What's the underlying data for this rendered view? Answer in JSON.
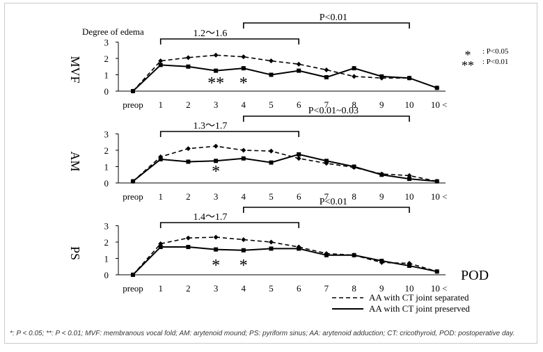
{
  "chart_data": {
    "type": "line",
    "x_categories": [
      "preop",
      "1",
      "2",
      "3",
      "4",
      "5",
      "6",
      "7",
      "8",
      "9",
      "10",
      "10 <"
    ],
    "x_axis_label": "POD",
    "y_axis_title": "Degree of edema",
    "ylim": [
      0,
      3
    ],
    "yticks": [
      "0",
      "1",
      "2",
      "3"
    ],
    "legend": {
      "placement": "bottom-right",
      "entries": [
        {
          "label": "AA with CT joint separated",
          "style": "dashed",
          "marker": "diamond"
        },
        {
          "label": "AA with CT joint preserved",
          "style": "solid",
          "marker": "square"
        }
      ]
    },
    "significance_key": [
      {
        "symbol": "*",
        "text": ": P<0.05"
      },
      {
        "symbol": "**",
        "text": ": P<0.01"
      }
    ],
    "panels": [
      {
        "name": "MVF",
        "series": [
          {
            "name": "AA with CT joint separated",
            "values": [
              0,
              1.85,
              2.05,
              2.2,
              2.1,
              1.85,
              1.65,
              1.3,
              0.9,
              0.8,
              0.8,
              0.2
            ]
          },
          {
            "name": "AA with CT joint preserved",
            "values": [
              0,
              1.6,
              1.5,
              1.25,
              1.4,
              1.0,
              1.25,
              0.85,
              1.4,
              0.9,
              0.8,
              0.2
            ]
          }
        ],
        "significance_marks": [
          {
            "x": "3",
            "symbol": "**"
          },
          {
            "x": "4",
            "symbol": "*"
          }
        ],
        "brackets": [
          {
            "from": "1",
            "to": "6",
            "label": "1.2～1.6"
          },
          {
            "from": "4",
            "to": "10",
            "label": "P<0.01"
          }
        ]
      },
      {
        "name": "AM",
        "series": [
          {
            "name": "AA with CT joint separated",
            "values": [
              0.1,
              1.6,
              2.1,
              2.25,
              2.0,
              1.95,
              1.5,
              1.2,
              0.95,
              0.55,
              0.45,
              0.1
            ]
          },
          {
            "name": "AA with CT joint preserved",
            "values": [
              0.1,
              1.45,
              1.3,
              1.35,
              1.5,
              1.25,
              1.75,
              1.35,
              1.0,
              0.5,
              0.25,
              0.1
            ]
          }
        ],
        "significance_marks": [
          {
            "x": "3",
            "symbol": "*"
          }
        ],
        "brackets": [
          {
            "from": "1",
            "to": "6",
            "label": "1.3～1.7"
          },
          {
            "from": "4",
            "to": "10",
            "label": "P<0.01~0.03"
          }
        ]
      },
      {
        "name": "PS",
        "series": [
          {
            "name": "AA with CT joint separated",
            "values": [
              0,
              1.9,
              2.25,
              2.3,
              2.15,
              2.0,
              1.7,
              1.3,
              1.2,
              0.75,
              0.7,
              0.2
            ]
          },
          {
            "name": "AA with CT joint preserved",
            "values": [
              0,
              1.7,
              1.7,
              1.55,
              1.5,
              1.6,
              1.6,
              1.2,
              1.2,
              0.85,
              0.55,
              0.2
            ]
          }
        ],
        "significance_marks": [
          {
            "x": "3",
            "symbol": "*"
          },
          {
            "x": "4",
            "symbol": "*"
          }
        ],
        "brackets": [
          {
            "from": "1",
            "to": "6",
            "label": "1.4～1.7"
          },
          {
            "from": "4",
            "to": "10",
            "label": "P<0.01"
          }
        ]
      }
    ]
  },
  "caption": "*: P < 0.05; **: P < 0.01; MVF: membranous vocal fold; AM: arytenoid mound; PS: pyriform sinus; AA: arytenoid adduction; CT: cricothyroid, POD: postoperative day."
}
